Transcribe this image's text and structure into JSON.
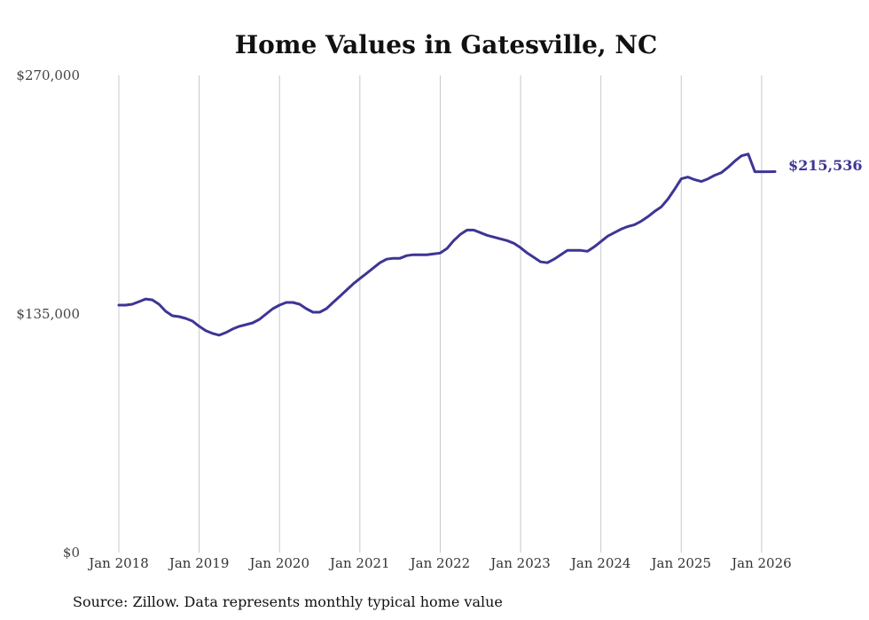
{
  "chart_data": {
    "type": "line",
    "title": "Home Values in Gatesville, NC",
    "source_note": "Source: Zillow. Data represents monthly typical home value",
    "xlabel": "",
    "ylabel": "",
    "ylim": [
      0,
      270000
    ],
    "y_ticks": [
      {
        "value": 0,
        "label": "$0"
      },
      {
        "value": 135000,
        "label": "$135,000"
      },
      {
        "value": 270000,
        "label": "$270,000"
      }
    ],
    "x_range": [
      "2018-01",
      "2026-03"
    ],
    "x_ticks": [
      {
        "date": "2018-01",
        "label": "Jan 2018"
      },
      {
        "date": "2019-01",
        "label": "Jan 2019"
      },
      {
        "date": "2020-01",
        "label": "Jan 2020"
      },
      {
        "date": "2021-01",
        "label": "Jan 2021"
      },
      {
        "date": "2022-01",
        "label": "Jan 2022"
      },
      {
        "date": "2023-01",
        "label": "Jan 2023"
      },
      {
        "date": "2024-01",
        "label": "Jan 2024"
      },
      {
        "date": "2025-01",
        "label": "Jan 2025"
      },
      {
        "date": "2026-01",
        "label": "Jan 2026"
      }
    ],
    "grid": "vertical",
    "colors": {
      "line": "#3d3595",
      "grid": "#c8c8c8"
    },
    "end_label": "$215,536",
    "series": [
      {
        "x": [
          "2018-01",
          "2018-02",
          "2018-03",
          "2018-04",
          "2018-05",
          "2018-06",
          "2018-07",
          "2018-08",
          "2018-09",
          "2018-10",
          "2018-11",
          "2018-12",
          "2019-01",
          "2019-02",
          "2019-03",
          "2019-04",
          "2019-05",
          "2019-06",
          "2019-07",
          "2019-08",
          "2019-09",
          "2019-10",
          "2019-11",
          "2019-12",
          "2020-01",
          "2020-02",
          "2020-03",
          "2020-04",
          "2020-05",
          "2020-06",
          "2020-07",
          "2020-08",
          "2020-09",
          "2020-10",
          "2020-11",
          "2020-12",
          "2021-01",
          "2021-02",
          "2021-03",
          "2021-04",
          "2021-05",
          "2021-06",
          "2021-07",
          "2021-08",
          "2021-09",
          "2021-10",
          "2021-11",
          "2021-12",
          "2022-01",
          "2022-02",
          "2022-03",
          "2022-04",
          "2022-05",
          "2022-06",
          "2022-07",
          "2022-08",
          "2022-09",
          "2022-10",
          "2022-11",
          "2022-12",
          "2023-01",
          "2023-02",
          "2023-03",
          "2023-04",
          "2023-05",
          "2023-06",
          "2023-07",
          "2023-08",
          "2023-09",
          "2023-10",
          "2023-11",
          "2023-12",
          "2024-01",
          "2024-02",
          "2024-03",
          "2024-04",
          "2024-05",
          "2024-06",
          "2024-07",
          "2024-08",
          "2024-09",
          "2024-10",
          "2024-11",
          "2024-12",
          "2025-01",
          "2025-02",
          "2025-03",
          "2025-04",
          "2025-05",
          "2025-06",
          "2025-07",
          "2025-08",
          "2025-09",
          "2025-10",
          "2025-11",
          "2025-12",
          "2026-01",
          "2026-02",
          "2026-03"
        ],
        "values": [
          140000,
          140000,
          140500,
          142000,
          143500,
          143000,
          140500,
          136500,
          134000,
          133500,
          132500,
          131000,
          128000,
          125500,
          124000,
          123000,
          124500,
          126500,
          128000,
          129000,
          130000,
          132000,
          135000,
          138000,
          140000,
          141500,
          141500,
          140500,
          138000,
          136000,
          136000,
          138000,
          141500,
          145000,
          148500,
          152000,
          155000,
          158000,
          161000,
          164000,
          166000,
          166500,
          166500,
          168000,
          168500,
          168500,
          168500,
          169000,
          169500,
          172000,
          176500,
          180000,
          182500,
          182500,
          181000,
          179500,
          178500,
          177500,
          176500,
          175000,
          172500,
          169500,
          167000,
          164500,
          164000,
          166000,
          168500,
          171000,
          171000,
          171000,
          170500,
          173000,
          176000,
          179000,
          181000,
          183000,
          184500,
          185500,
          187500,
          190000,
          193000,
          195500,
          200000,
          205500,
          211500,
          212500,
          211000,
          210000,
          211500,
          213500,
          215000,
          218000,
          221500,
          224500,
          225500,
          215500,
          215500,
          215500,
          215536
        ]
      }
    ]
  }
}
